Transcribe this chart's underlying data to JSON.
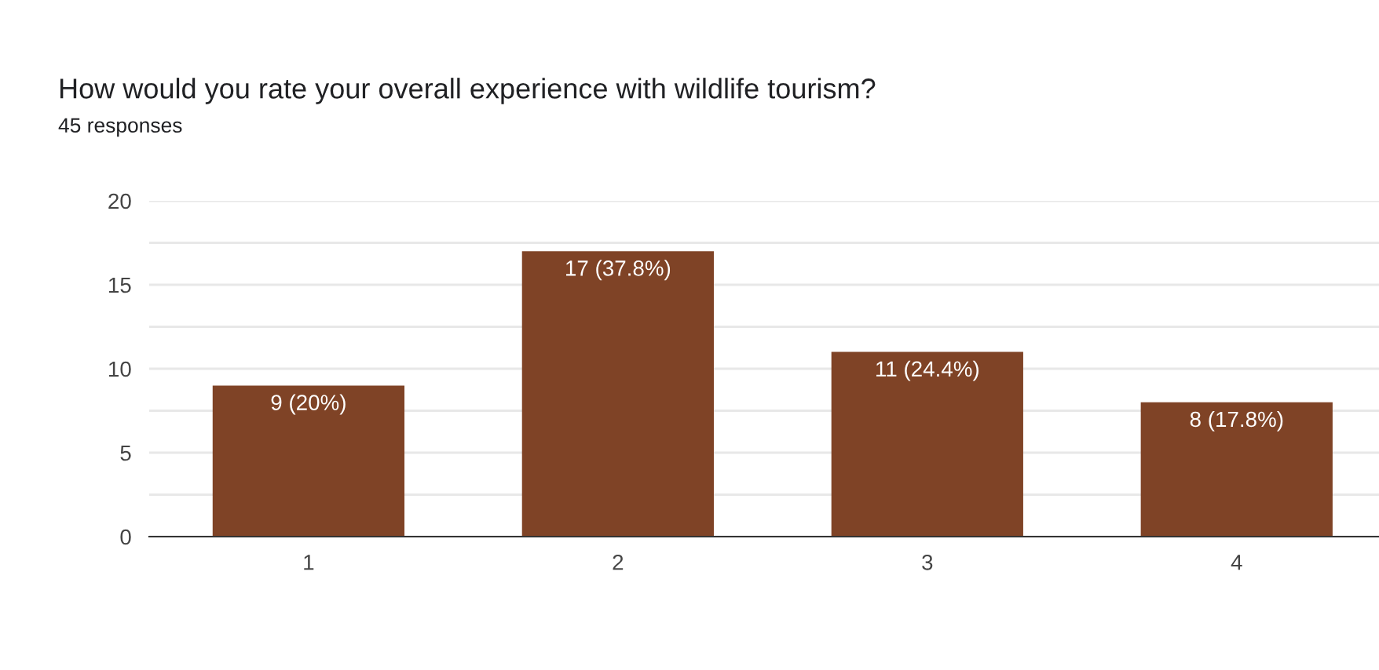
{
  "chart_data": {
    "type": "bar",
    "title": "How would you rate your overall experience with wildlife tourism?",
    "subtitle": "45 responses",
    "categories": [
      "1",
      "2",
      "3",
      "4"
    ],
    "values": [
      9,
      17,
      11,
      8
    ],
    "value_labels": [
      "9 (20%)",
      "17 (37.8%)",
      "11 (24.4%)",
      "8 (17.8%)"
    ],
    "color": "#7f4326",
    "ylim": [
      0,
      20
    ],
    "yticks": [
      0,
      {
        "value": 2.5,
        "label": null
      },
      5,
      {
        "value": 7.5,
        "label": null
      },
      10,
      {
        "value": 12.5,
        "label": null
      },
      15,
      {
        "value": 17.5,
        "label": null
      },
      20
    ],
    "grid": "y",
    "legend": false
  }
}
